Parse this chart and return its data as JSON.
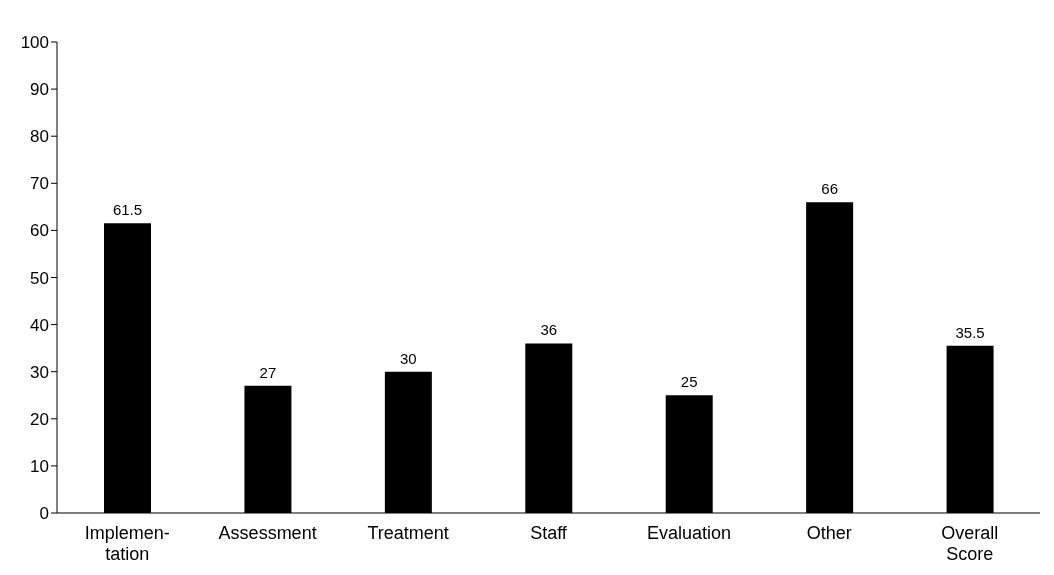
{
  "chart_data": {
    "type": "bar",
    "categories": [
      "Implemen-\ntation",
      "Assessment",
      "Treatment",
      "Staff",
      "Evaluation",
      "Other",
      "Overall\nScore"
    ],
    "values": [
      61.5,
      27,
      30,
      36,
      25,
      66,
      35.5
    ],
    "color": "#000000",
    "ylim": [
      0,
      100
    ],
    "yticks": [
      0,
      10,
      20,
      30,
      40,
      50,
      60,
      70,
      80,
      90,
      100
    ],
    "grid": false,
    "legend": false,
    "data_labels": true
  }
}
